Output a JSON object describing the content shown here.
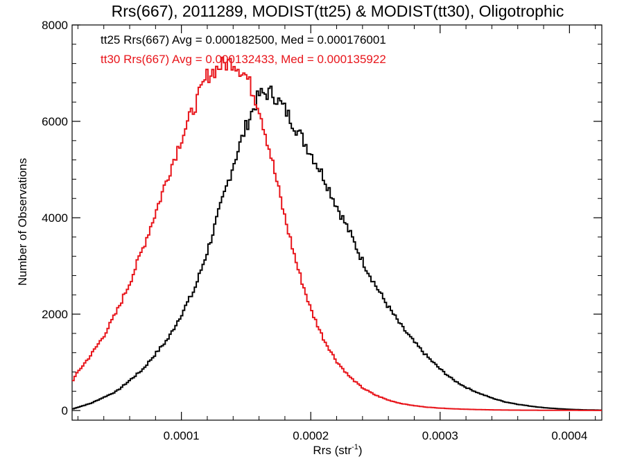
{
  "chart_data": {
    "type": "line",
    "title": "Rrs(667), 2011289, MODIST(tt25) & MODIST(tt30), Oligotrophic",
    "xlabel_main": "Rrs (str",
    "xlabel_sup": "-1",
    "xlabel_close": ")",
    "ylabel": "Number of Observations",
    "xlim": [
      1.55e-05,
      0.000425
    ],
    "ylim": [
      -200,
      8000
    ],
    "x_ticks": [
      0.0001,
      0.0002,
      0.0003,
      0.0004
    ],
    "x_tick_labels": [
      "0.0001",
      "0.0002",
      "0.0003",
      "0.0004"
    ],
    "y_ticks": [
      0,
      2000,
      4000,
      6000,
      8000
    ],
    "y_tick_labels": [
      "0",
      "2000",
      "4000",
      "6000",
      "8000"
    ],
    "grid": false,
    "legend_placement": "top-left",
    "annotations": [
      {
        "text": "tt25 Rrs(667) Avg = 0.000182500, Med = 0.000176001",
        "color": "#000000"
      },
      {
        "text": "tt30 Rrs(667) Avg = 0.000132433, Med = 0.000135922",
        "color": "#e8141a"
      }
    ],
    "series": [
      {
        "color": "#000000",
        "style": "step",
        "x": [
          1.55e-05,
          3e-05,
          5e-05,
          7e-05,
          9e-05,
          0.00011,
          0.00012,
          0.00013,
          0.00014,
          0.00015,
          0.00016,
          0.00017,
          0.00018,
          0.00019,
          0.0002,
          0.00021,
          0.00022,
          0.00023,
          0.00024,
          0.00025,
          0.00026,
          0.00027,
          0.00028,
          0.00029,
          0.0003,
          0.00031,
          0.00032,
          0.00033,
          0.00034,
          0.00035,
          0.00036,
          0.00037,
          0.00038,
          0.00039,
          0.0004,
          0.00041,
          0.00042,
          0.000425
        ],
        "y": [
          30,
          150,
          400,
          850,
          1500,
          2500,
          3300,
          4200,
          5100,
          5900,
          6550,
          6600,
          6250,
          5800,
          5350,
          4850,
          4250,
          3700,
          3100,
          2600,
          2150,
          1750,
          1420,
          1120,
          860,
          640,
          480,
          360,
          260,
          180,
          130,
          90,
          60,
          40,
          25,
          15,
          10,
          8
        ]
      },
      {
        "color": "#e8141a",
        "style": "step",
        "x": [
          1.55e-05,
          2e-05,
          3e-05,
          4e-05,
          5e-05,
          6e-05,
          7e-05,
          8e-05,
          9e-05,
          0.0001,
          0.00011,
          0.00012,
          0.00013,
          0.00014,
          0.00015,
          0.00016,
          0.00017,
          0.00018,
          0.00019,
          0.0002,
          0.00021,
          0.00022,
          0.00023,
          0.00024,
          0.00025,
          0.00026,
          0.00027,
          0.00028,
          0.00029,
          0.0003,
          0.00031,
          0.00032,
          0.00033,
          0.00034,
          0.00035,
          0.00036,
          0.00038,
          0.0004,
          0.00042,
          0.000425
        ],
        "y": [
          600,
          800,
          1150,
          1550,
          2050,
          2650,
          3350,
          4100,
          4900,
          5650,
          6300,
          6950,
          7150,
          7250,
          6950,
          6300,
          5200,
          4000,
          2950,
          2100,
          1480,
          1020,
          700,
          470,
          320,
          215,
          145,
          100,
          70,
          50,
          36,
          26,
          19,
          14,
          10,
          8,
          6,
          4,
          3,
          3
        ]
      }
    ]
  }
}
